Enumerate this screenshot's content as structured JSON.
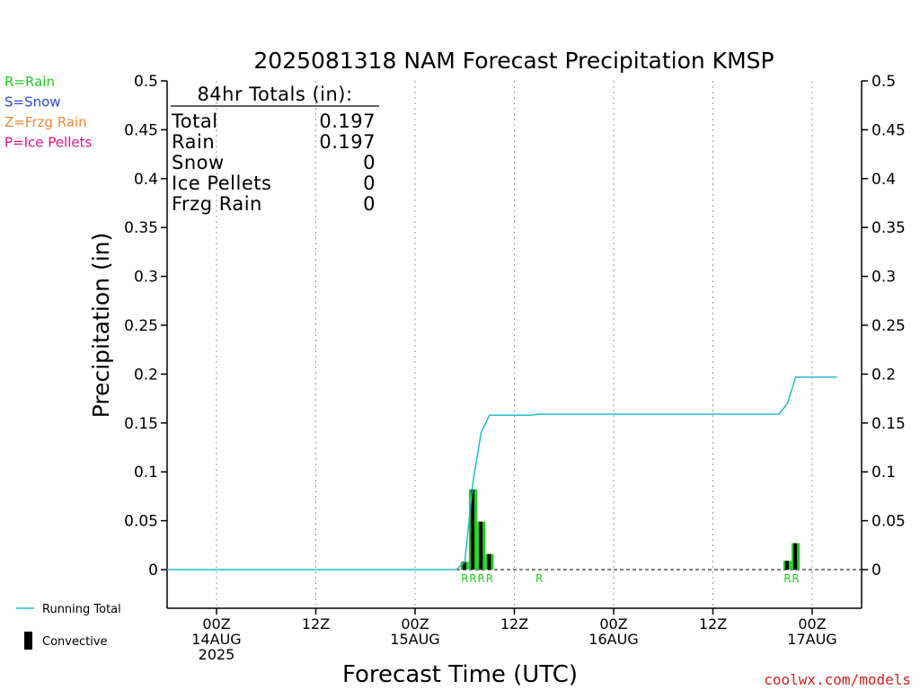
{
  "chart_data": {
    "type": "bar",
    "title": "2025081318 NAM Forecast Precipitation KMSP",
    "xlabel": "Forecast Time (UTC)",
    "ylabel": "Precipitation (in)",
    "ylim": [
      0,
      0.5
    ],
    "xlim": [
      -9,
      75
    ],
    "grid": true,
    "y_ticks": [
      "0",
      "0.05",
      "0.1",
      "0.15",
      "0.2",
      "0.25",
      "0.3",
      "0.35",
      "0.4",
      "0.45",
      "0.5"
    ],
    "x_ticks": [
      {
        "hour": 0,
        "lines": [
          "00Z",
          "14AUG",
          "2025"
        ]
      },
      {
        "hour": 12,
        "lines": [
          "12Z"
        ]
      },
      {
        "hour": 24,
        "lines": [
          "00Z",
          "15AUG"
        ]
      },
      {
        "hour": 36,
        "lines": [
          "12Z"
        ]
      },
      {
        "hour": 48,
        "lines": [
          "00Z",
          "16AUG"
        ]
      },
      {
        "hour": 60,
        "lines": [
          "12Z"
        ]
      },
      {
        "hour": 72,
        "lines": [
          "00Z",
          "17AUG"
        ]
      }
    ],
    "precip_type_legend": [
      {
        "label": "R=Rain",
        "color": "#22cc22"
      },
      {
        "label": "S=Snow",
        "color": "#3344dd"
      },
      {
        "label": "Z=Frzg Rain",
        "color": "#ee8833"
      },
      {
        "label": "P=Ice Pellets",
        "color": "#dd1188"
      }
    ],
    "series": [
      {
        "name": "Total",
        "color": "#22cc22",
        "points": [
          {
            "hour": 30,
            "value": 0.008
          },
          {
            "hour": 31,
            "value": 0.082
          },
          {
            "hour": 32,
            "value": 0.049
          },
          {
            "hour": 33,
            "value": 0.016
          },
          {
            "hour": 69,
            "value": 0.009
          },
          {
            "hour": 70,
            "value": 0.027
          }
        ]
      },
      {
        "name": "Convective",
        "color": "#000000",
        "points": [
          {
            "hour": 30,
            "value": 0.008
          },
          {
            "hour": 31,
            "value": 0.082
          },
          {
            "hour": 32,
            "value": 0.049
          },
          {
            "hour": 33,
            "value": 0.016
          },
          {
            "hour": 69,
            "value": 0.009
          },
          {
            "hour": 70,
            "value": 0.027
          }
        ]
      },
      {
        "name": "Running Total",
        "color": "#22bbcc",
        "points": [
          {
            "hour": -6,
            "value": 0
          },
          {
            "hour": 29,
            "value": 0
          },
          {
            "hour": 30,
            "value": 0.008
          },
          {
            "hour": 31,
            "value": 0.09
          },
          {
            "hour": 32,
            "value": 0.141
          },
          {
            "hour": 33,
            "value": 0.158
          },
          {
            "hour": 38,
            "value": 0.158
          },
          {
            "hour": 39,
            "value": 0.159
          },
          {
            "hour": 68,
            "value": 0.159
          },
          {
            "hour": 69,
            "value": 0.17
          },
          {
            "hour": 70,
            "value": 0.197
          },
          {
            "hour": 75,
            "value": 0.197
          }
        ]
      }
    ],
    "type_markers": [
      {
        "hour": 30,
        "label": "R"
      },
      {
        "hour": 31,
        "label": "R"
      },
      {
        "hour": 32,
        "label": "R"
      },
      {
        "hour": 33,
        "label": "R"
      },
      {
        "hour": 39,
        "label": "R"
      },
      {
        "hour": 69,
        "label": "R"
      },
      {
        "hour": 70,
        "label": "R"
      }
    ],
    "totals_box": {
      "heading": "84hr Totals (in):",
      "rows": [
        {
          "label": "Total",
          "value": "0.197"
        },
        {
          "label": "Rain",
          "value": "0.197"
        },
        {
          "label": "Snow",
          "value": "0"
        },
        {
          "label": "Ice Pellets",
          "value": "0"
        },
        {
          "label": "Frzg Rain",
          "value": "0"
        }
      ]
    },
    "series_legend": [
      {
        "label": "Running Total",
        "color": "#22bbcc"
      },
      {
        "label": "Convective",
        "color": "#000000"
      }
    ],
    "credit": "coolwx.com/models"
  }
}
